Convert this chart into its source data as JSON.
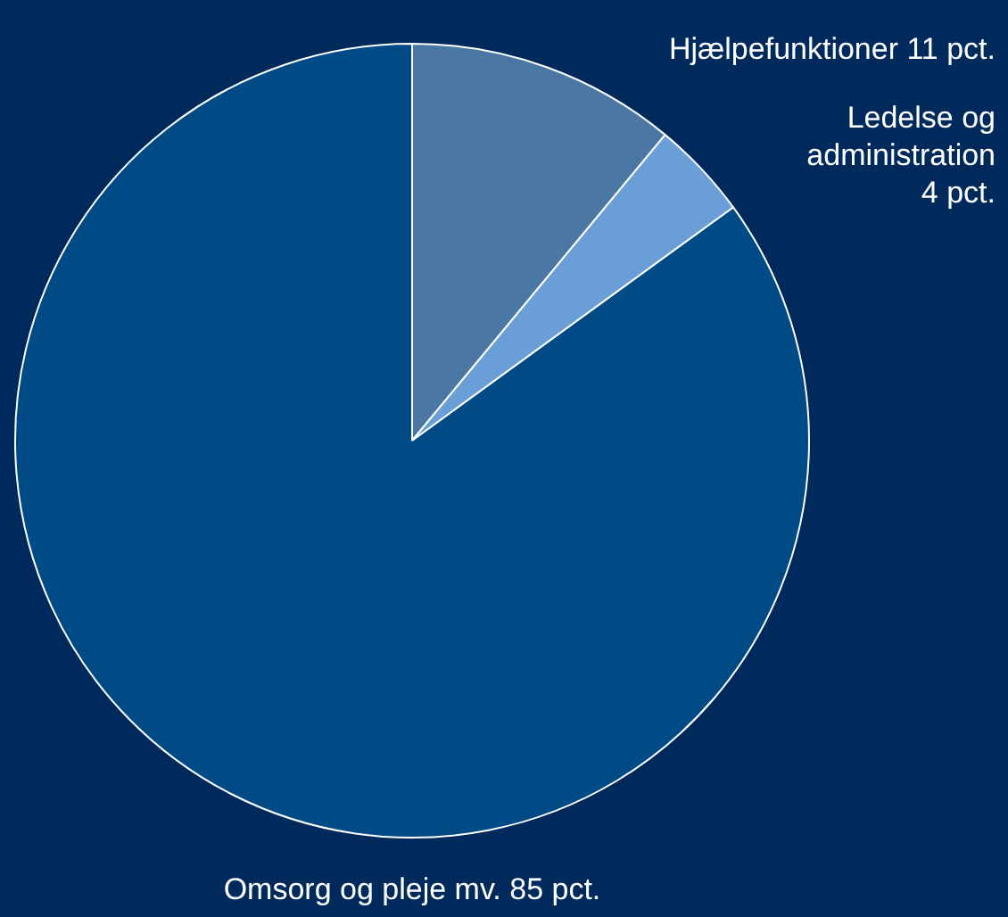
{
  "chart_data": {
    "type": "pie",
    "categories": [
      "Hjælpefunktioner",
      "Ledelse og administration",
      "Omsorg og pleje mv."
    ],
    "values": [
      11,
      4,
      85
    ],
    "colors": [
      "#4a77a3",
      "#6a9ed6",
      "#004a86"
    ],
    "value_labels": [
      "11 pct.",
      "4 pct.",
      "85 pct."
    ],
    "legend": false
  }
}
